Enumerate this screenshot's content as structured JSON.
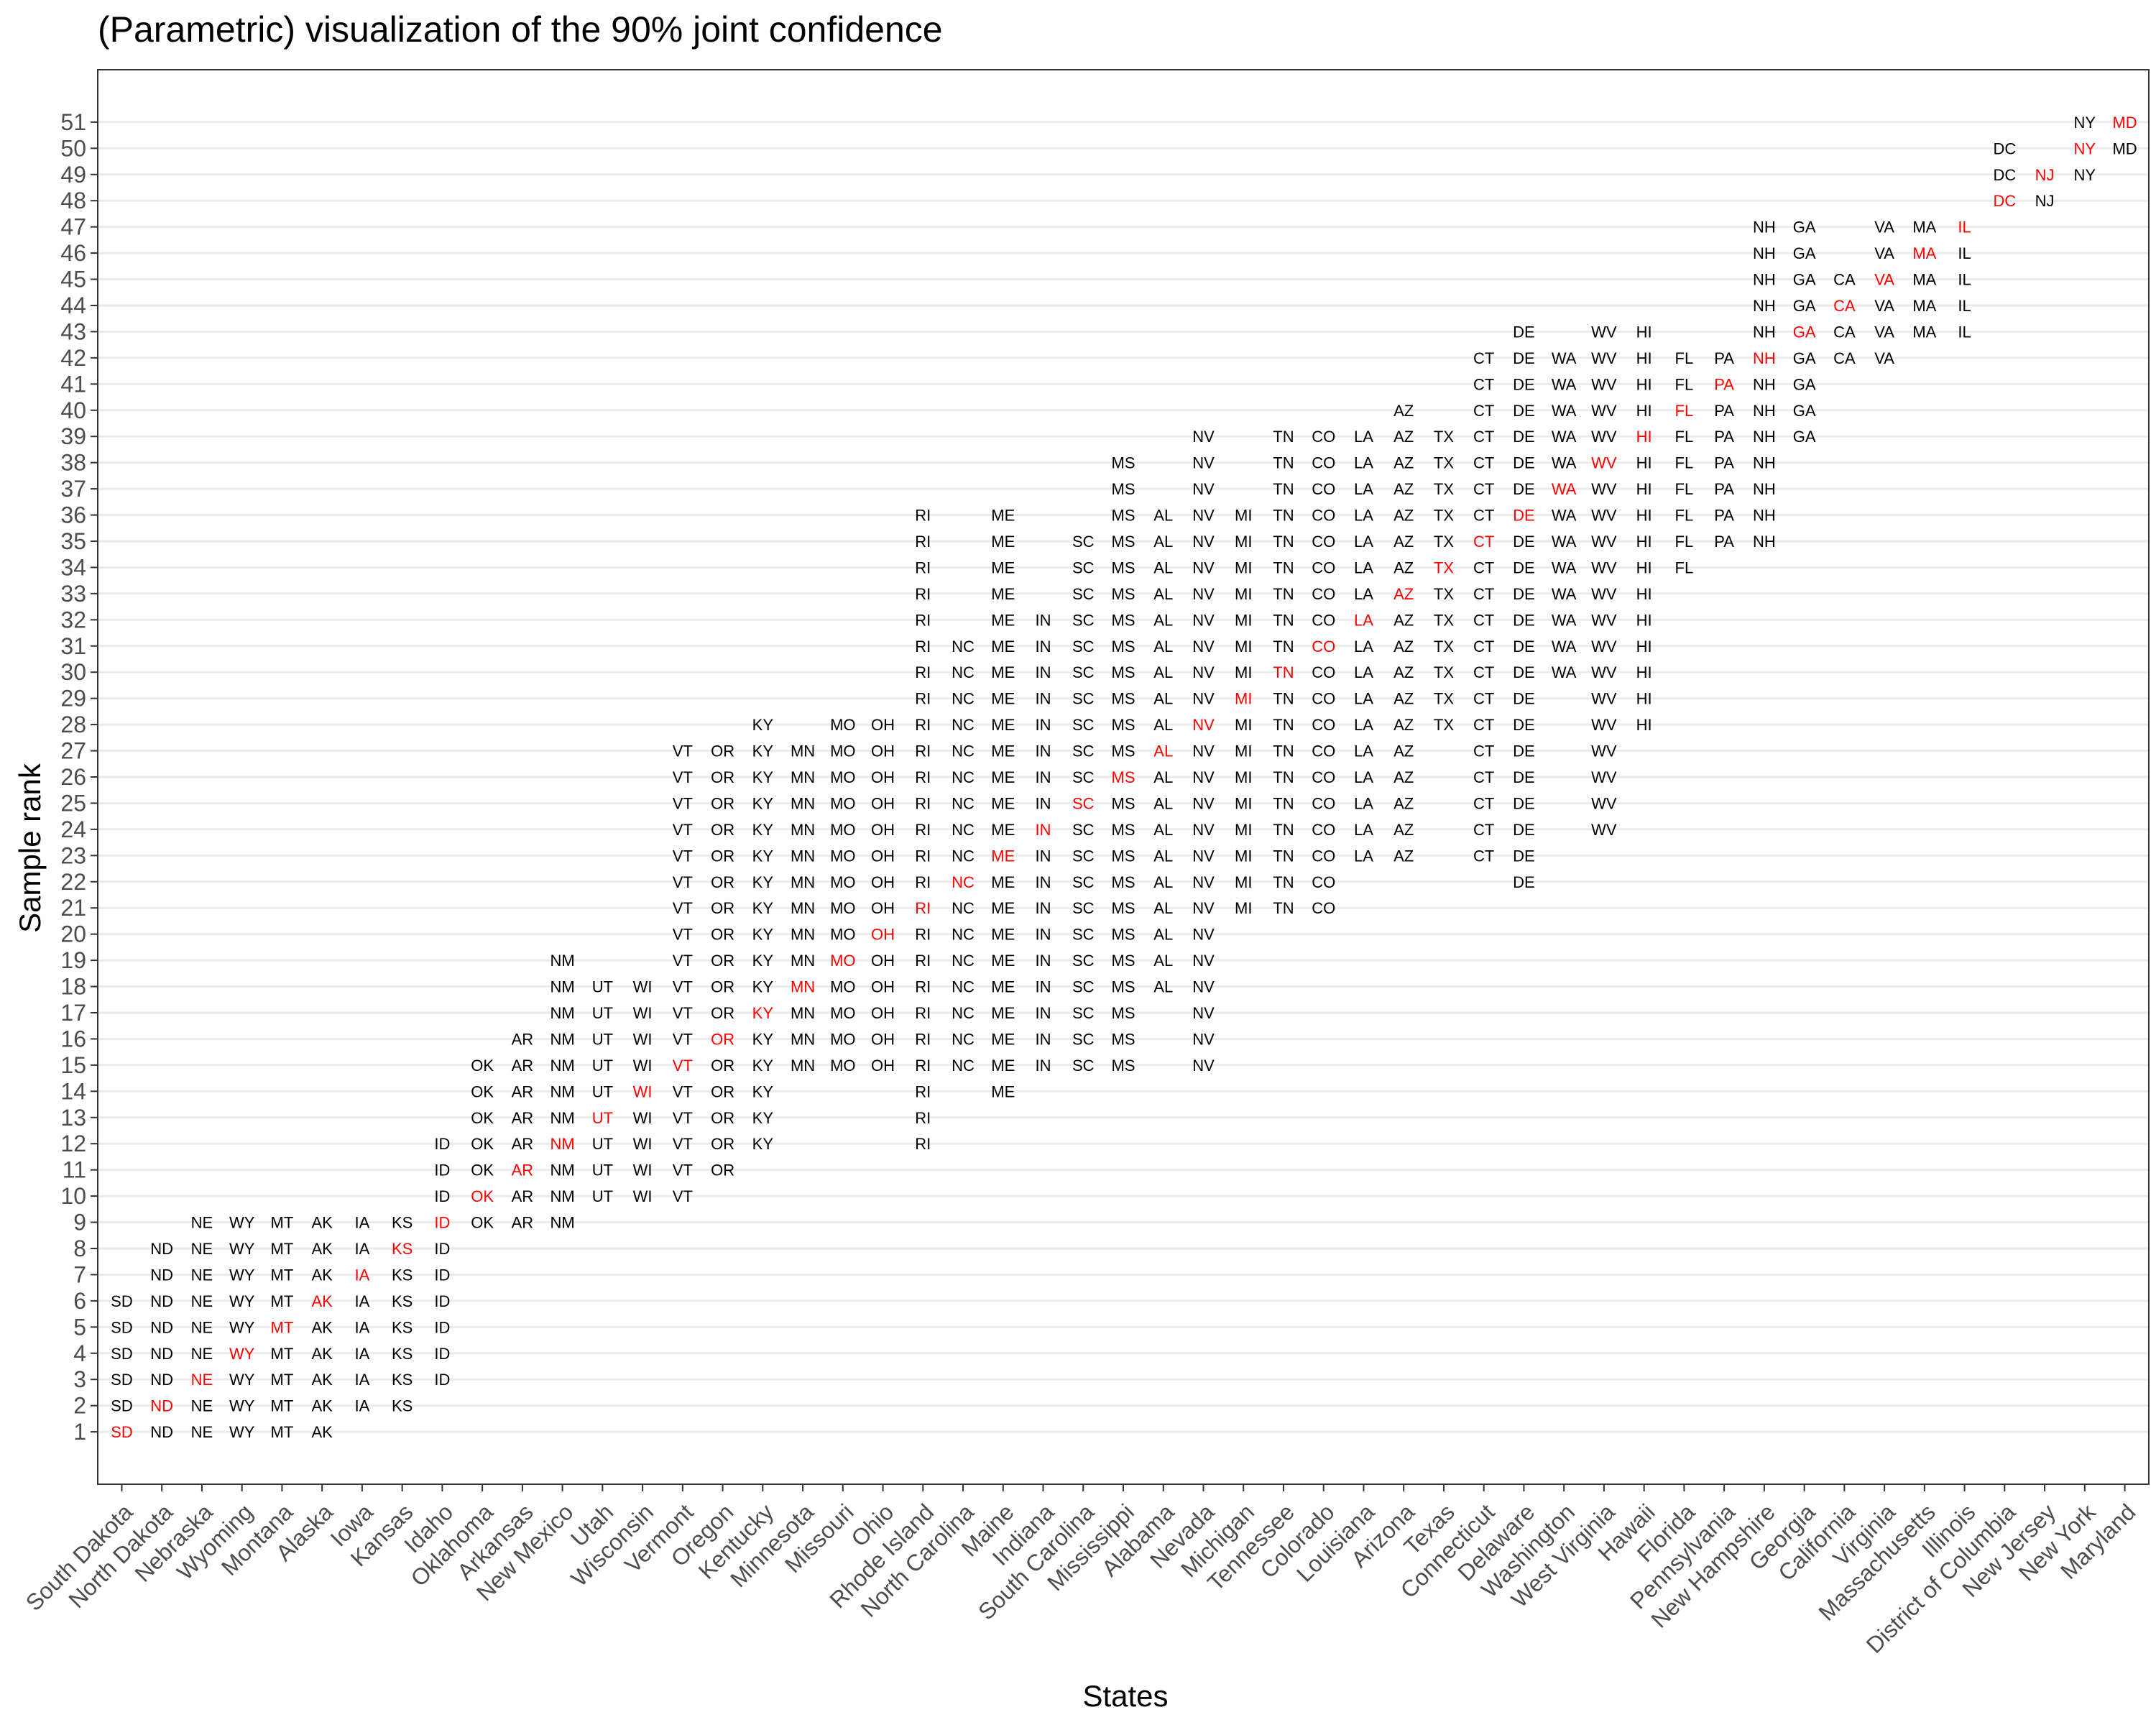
{
  "chart_data": {
    "type": "table",
    "title": "(Parametric) visualization of the 90% joint confidence",
    "xlabel": "States",
    "ylabel": "Sample rank",
    "yticks": [
      1,
      2,
      3,
      4,
      5,
      6,
      7,
      8,
      9,
      10,
      11,
      12,
      13,
      14,
      15,
      16,
      17,
      18,
      19,
      20,
      21,
      22,
      23,
      24,
      25,
      26,
      27,
      28,
      29,
      30,
      31,
      32,
      33,
      34,
      35,
      36,
      37,
      38,
      39,
      40,
      41,
      42,
      43,
      44,
      45,
      46,
      47,
      48,
      49,
      50,
      51
    ],
    "ylim": [
      -1,
      53
    ],
    "grid": "horizontal",
    "colors": {
      "observed_rank": "#ff0000",
      "interval": "#000000"
    },
    "states": [
      {
        "name": "South Dakota",
        "abbr": "SD",
        "observed": 1,
        "lower": 1,
        "upper": 6
      },
      {
        "name": "North Dakota",
        "abbr": "ND",
        "observed": 2,
        "lower": 1,
        "upper": 8
      },
      {
        "name": "Nebraska",
        "abbr": "NE",
        "observed": 3,
        "lower": 1,
        "upper": 9
      },
      {
        "name": "Wyoming",
        "abbr": "WY",
        "observed": 4,
        "lower": 1,
        "upper": 9
      },
      {
        "name": "Montana",
        "abbr": "MT",
        "observed": 5,
        "lower": 1,
        "upper": 9
      },
      {
        "name": "Alaska",
        "abbr": "AK",
        "observed": 6,
        "lower": 1,
        "upper": 9
      },
      {
        "name": "Iowa",
        "abbr": "IA",
        "observed": 7,
        "lower": 2,
        "upper": 9
      },
      {
        "name": "Kansas",
        "abbr": "KS",
        "observed": 8,
        "lower": 2,
        "upper": 9
      },
      {
        "name": "Idaho",
        "abbr": "ID",
        "observed": 9,
        "lower": 3,
        "upper": 12
      },
      {
        "name": "Oklahoma",
        "abbr": "OK",
        "observed": 10,
        "lower": 9,
        "upper": 15
      },
      {
        "name": "Arkansas",
        "abbr": "AR",
        "observed": 11,
        "lower": 9,
        "upper": 16
      },
      {
        "name": "New Mexico",
        "abbr": "NM",
        "observed": 12,
        "lower": 9,
        "upper": 19
      },
      {
        "name": "Utah",
        "abbr": "UT",
        "observed": 13,
        "lower": 10,
        "upper": 18
      },
      {
        "name": "Wisconsin",
        "abbr": "WI",
        "observed": 14,
        "lower": 10,
        "upper": 18
      },
      {
        "name": "Vermont",
        "abbr": "VT",
        "observed": 15,
        "lower": 10,
        "upper": 27
      },
      {
        "name": "Oregon",
        "abbr": "OR",
        "observed": 16,
        "lower": 11,
        "upper": 27
      },
      {
        "name": "Kentucky",
        "abbr": "KY",
        "observed": 17,
        "lower": 12,
        "upper": 28
      },
      {
        "name": "Minnesota",
        "abbr": "MN",
        "observed": 18,
        "lower": 15,
        "upper": 27
      },
      {
        "name": "Missouri",
        "abbr": "MO",
        "observed": 19,
        "lower": 15,
        "upper": 28
      },
      {
        "name": "Ohio",
        "abbr": "OH",
        "observed": 20,
        "lower": 15,
        "upper": 28
      },
      {
        "name": "Rhode Island",
        "abbr": "RI",
        "observed": 21,
        "lower": 12,
        "upper": 36
      },
      {
        "name": "North Carolina",
        "abbr": "NC",
        "observed": 22,
        "lower": 15,
        "upper": 31
      },
      {
        "name": "Maine",
        "abbr": "ME",
        "observed": 23,
        "lower": 14,
        "upper": 36
      },
      {
        "name": "Indiana",
        "abbr": "IN",
        "observed": 24,
        "lower": 15,
        "upper": 32
      },
      {
        "name": "South Carolina",
        "abbr": "SC",
        "observed": 25,
        "lower": 15,
        "upper": 35
      },
      {
        "name": "Mississippi",
        "abbr": "MS",
        "observed": 26,
        "lower": 15,
        "upper": 38
      },
      {
        "name": "Alabama",
        "abbr": "AL",
        "observed": 27,
        "lower": 18,
        "upper": 36
      },
      {
        "name": "Nevada",
        "abbr": "NV",
        "observed": 28,
        "lower": 15,
        "upper": 39
      },
      {
        "name": "Michigan",
        "abbr": "MI",
        "observed": 29,
        "lower": 21,
        "upper": 36
      },
      {
        "name": "Tennessee",
        "abbr": "TN",
        "observed": 30,
        "lower": 21,
        "upper": 39
      },
      {
        "name": "Colorado",
        "abbr": "CO",
        "observed": 31,
        "lower": 21,
        "upper": 39
      },
      {
        "name": "Louisiana",
        "abbr": "LA",
        "observed": 32,
        "lower": 23,
        "upper": 39
      },
      {
        "name": "Arizona",
        "abbr": "AZ",
        "observed": 33,
        "lower": 23,
        "upper": 40
      },
      {
        "name": "Texas",
        "abbr": "TX",
        "observed": 34,
        "lower": 28,
        "upper": 39
      },
      {
        "name": "Connecticut",
        "abbr": "CT",
        "observed": 35,
        "lower": 23,
        "upper": 42
      },
      {
        "name": "Delaware",
        "abbr": "DE",
        "observed": 36,
        "lower": 22,
        "upper": 43
      },
      {
        "name": "Washington",
        "abbr": "WA",
        "observed": 37,
        "lower": 30,
        "upper": 42
      },
      {
        "name": "West Virginia",
        "abbr": "WV",
        "observed": 38,
        "lower": 24,
        "upper": 43
      },
      {
        "name": "Hawaii",
        "abbr": "HI",
        "observed": 39,
        "lower": 28,
        "upper": 43
      },
      {
        "name": "Florida",
        "abbr": "FL",
        "observed": 40,
        "lower": 34,
        "upper": 42
      },
      {
        "name": "Pennsylvania",
        "abbr": "PA",
        "observed": 41,
        "lower": 35,
        "upper": 42
      },
      {
        "name": "New Hampshire",
        "abbr": "NH",
        "observed": 42,
        "lower": 35,
        "upper": 47
      },
      {
        "name": "Georgia",
        "abbr": "GA",
        "observed": 43,
        "lower": 39,
        "upper": 47
      },
      {
        "name": "California",
        "abbr": "CA",
        "observed": 44,
        "lower": 42,
        "upper": 45
      },
      {
        "name": "Virginia",
        "abbr": "VA",
        "observed": 45,
        "lower": 42,
        "upper": 47
      },
      {
        "name": "Massachusetts",
        "abbr": "MA",
        "observed": 46,
        "lower": 43,
        "upper": 47
      },
      {
        "name": "Illinois",
        "abbr": "IL",
        "observed": 47,
        "lower": 43,
        "upper": 47
      },
      {
        "name": "District of Columbia",
        "abbr": "DC",
        "observed": 48,
        "lower": 48,
        "upper": 50
      },
      {
        "name": "New Jersey",
        "abbr": "NJ",
        "observed": 49,
        "lower": 48,
        "upper": 49
      },
      {
        "name": "New York",
        "abbr": "NY",
        "observed": 50,
        "lower": 49,
        "upper": 51
      },
      {
        "name": "Maryland",
        "abbr": "MD",
        "observed": 51,
        "lower": 50,
        "upper": 51
      }
    ]
  }
}
